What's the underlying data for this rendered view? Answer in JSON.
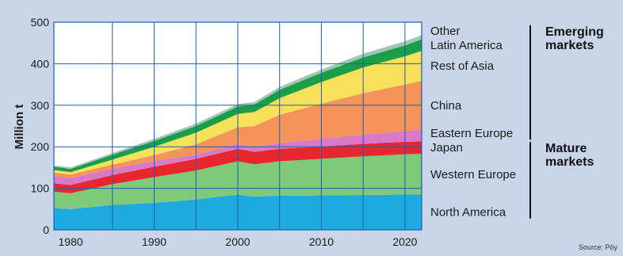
{
  "chart_data": {
    "type": "area",
    "stacked": true,
    "ylabel": "Million t",
    "ylim": [
      0,
      500
    ],
    "yticks": [
      0,
      100,
      200,
      300,
      400,
      500
    ],
    "xlim": [
      1978,
      2022
    ],
    "xticks": [
      1980,
      1990,
      2000,
      2010,
      2020
    ],
    "grid": true,
    "x": [
      1978,
      1980,
      1985,
      1990,
      1995,
      2000,
      2002,
      2005,
      2010,
      2015,
      2020,
      2022
    ],
    "series": [
      {
        "name": "North America",
        "color": "#1fa9e1",
        "values": [
          52,
          50,
          60,
          65,
          73,
          85,
          80,
          82,
          83,
          84,
          85,
          85
        ]
      },
      {
        "name": "Western Europe",
        "color": "#7fc97a",
        "values": [
          40,
          38,
          50,
          62,
          70,
          80,
          78,
          83,
          88,
          93,
          97,
          98
        ]
      },
      {
        "name": "Japan",
        "color": "#e8262d",
        "values": [
          20,
          20,
          22,
          25,
          28,
          30,
          30,
          30,
          30,
          30,
          30,
          30
        ]
      },
      {
        "name": "Eastern Europe",
        "color": "#d97ac8",
        "values": [
          18,
          17,
          15,
          14,
          10,
          12,
          12,
          14,
          18,
          22,
          26,
          28
        ]
      },
      {
        "name": "China",
        "color": "#f4945a",
        "values": [
          8,
          8,
          10,
          14,
          25,
          40,
          50,
          68,
          85,
          100,
          112,
          118
        ]
      },
      {
        "name": "Rest of Asia",
        "color": "#f7e05a",
        "values": [
          6,
          6,
          12,
          20,
          28,
          32,
          34,
          40,
          52,
          62,
          68,
          72
        ]
      },
      {
        "name": "Latin America",
        "color": "#1a9e4a",
        "values": [
          8,
          8,
          12,
          14,
          16,
          18,
          18,
          20,
          22,
          24,
          26,
          28
        ]
      },
      {
        "name": "Other",
        "color": "#9fc6b4",
        "values": [
          3,
          3,
          4,
          5,
          6,
          6,
          6,
          7,
          8,
          9,
          10,
          10
        ]
      }
    ],
    "groups": [
      {
        "name": "Emerging\nmarkets",
        "members": [
          "Other",
          "Latin America",
          "Rest of Asia",
          "China",
          "Eastern Europe"
        ]
      },
      {
        "name": "Mature\nmarkets",
        "members": [
          "Japan",
          "Western Europe",
          "North America"
        ]
      }
    ],
    "source": "Source: Pöy"
  },
  "plot_bg": "#ffffff",
  "grid_color": "#1a5fb4"
}
